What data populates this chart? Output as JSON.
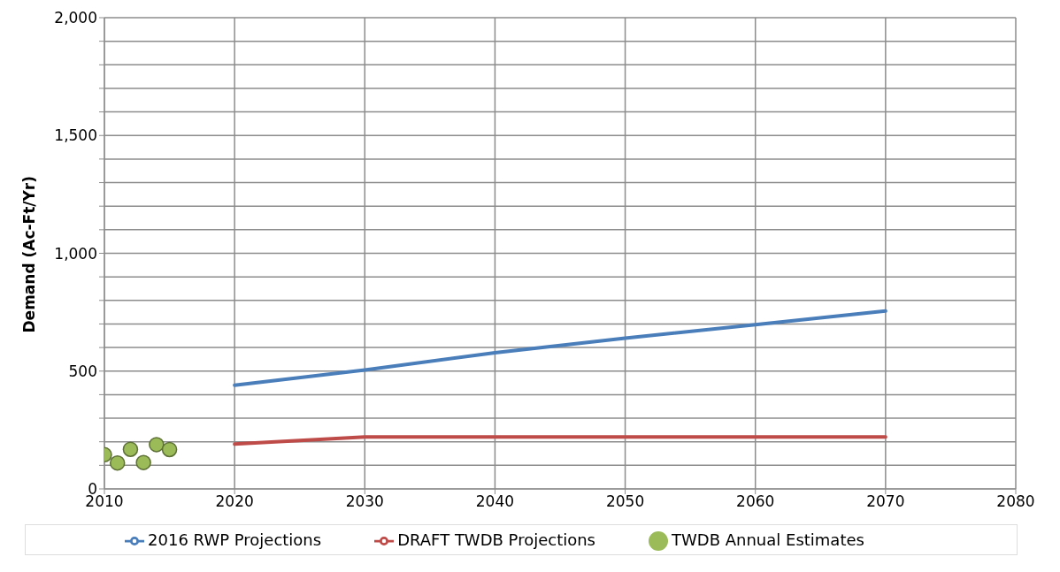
{
  "chart_data": {
    "type": "line",
    "ylabel": "Demand (Ac-Ft/Yr)",
    "xlim": [
      2010,
      2080
    ],
    "xticks": [
      2010,
      2020,
      2030,
      2040,
      2050,
      2060,
      2070,
      2080
    ],
    "ylim": [
      0,
      2000
    ],
    "yticks": [
      0,
      {
        "value": 100,
        "label": null
      },
      {
        "value": 200,
        "label": null
      },
      {
        "value": 300,
        "label": null
      },
      {
        "value": 400,
        "label": null
      },
      500,
      {
        "value": 600,
        "label": null
      },
      {
        "value": 700,
        "label": null
      },
      {
        "value": 800,
        "label": null
      },
      {
        "value": 900,
        "label": null
      },
      {
        "value": 1000,
        "label": "1,000"
      },
      {
        "value": 1100,
        "label": null
      },
      {
        "value": 1200,
        "label": null
      },
      {
        "value": 1300,
        "label": null
      },
      {
        "value": 1400,
        "label": null
      },
      {
        "value": 1500,
        "label": "1,500"
      },
      {
        "value": 1600,
        "label": null
      },
      {
        "value": 1700,
        "label": null
      },
      {
        "value": 1800,
        "label": null
      },
      {
        "value": 1900,
        "label": null
      },
      {
        "value": 2000,
        "label": "2,000"
      }
    ],
    "grid": true,
    "legend": "bottom",
    "marker": "none",
    "line_style": "solid",
    "series": [
      {
        "name": "2016 RWP Projections",
        "color": "#4a7ebb",
        "x": [
          2020,
          2030,
          2040,
          2050,
          2060,
          2070
        ],
        "values": [
          440,
          505,
          578,
          640,
          697,
          755
        ]
      },
      {
        "name": "DRAFT TWDB Projections",
        "color": "#be4b48",
        "x": [
          2020,
          2030,
          2040,
          2050,
          2060,
          2070
        ],
        "values": [
          190,
          220,
          220,
          220,
          220,
          220
        ]
      },
      {
        "name": "TWDB Annual Estimates",
        "type": "scatter",
        "marker": "circle",
        "color": "#9bbb59",
        "x": [
          2010,
          2011,
          2012,
          2013,
          2014,
          2015
        ],
        "values": [
          145,
          110,
          168,
          112,
          188,
          167
        ]
      }
    ]
  }
}
